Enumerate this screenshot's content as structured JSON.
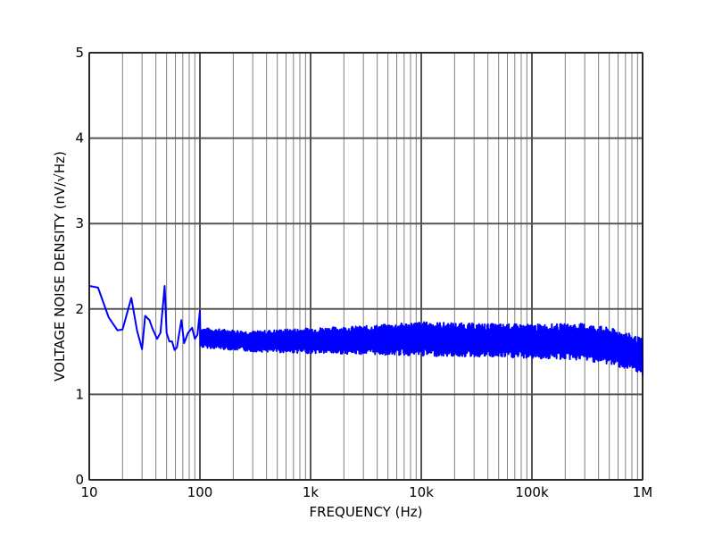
{
  "chart_data": {
    "type": "line",
    "title": "",
    "xlabel": "FREQUENCY (Hz)",
    "ylabel": "VOLTAGE NOISE DENSITY (nV/√Hz)",
    "xscale": "log",
    "xlim": [
      10,
      1000000
    ],
    "ylim": [
      0,
      5
    ],
    "grid": true,
    "line_color": "#0000ff",
    "x_ticks": [
      {
        "value": 10,
        "label": "10"
      },
      {
        "value": 100,
        "label": "100"
      },
      {
        "value": 1000,
        "label": "1k"
      },
      {
        "value": 10000,
        "label": "10k"
      },
      {
        "value": 100000,
        "label": "100k"
      },
      {
        "value": 1000000,
        "label": "1M"
      }
    ],
    "y_ticks": [
      {
        "value": 0,
        "label": "0"
      },
      {
        "value": 1,
        "label": "1"
      },
      {
        "value": 2,
        "label": "2"
      },
      {
        "value": 3,
        "label": "3"
      },
      {
        "value": 4,
        "label": "4"
      },
      {
        "value": 5,
        "label": "5"
      }
    ],
    "series": [
      {
        "x": [
          10,
          12,
          15,
          18,
          20,
          24,
          27,
          30,
          32,
          35,
          37,
          41,
          44,
          48,
          50,
          53,
          56,
          59,
          62,
          68,
          72,
          78,
          85,
          90,
          95,
          100
        ],
        "y": [
          2.27,
          2.25,
          1.9,
          1.75,
          1.76,
          2.13,
          1.75,
          1.53,
          1.92,
          1.87,
          1.78,
          1.65,
          1.72,
          2.27,
          1.72,
          1.62,
          1.62,
          1.52,
          1.55,
          1.87,
          1.6,
          1.72,
          1.78,
          1.65,
          1.7,
          1.98
        ]
      }
    ],
    "noise_band": {
      "x": [
        100,
        300,
        1000,
        3000,
        10000,
        30000,
        100000,
        300000,
        500000,
        700000,
        1000000
      ],
      "lower": [
        1.55,
        1.5,
        1.48,
        1.47,
        1.45,
        1.44,
        1.42,
        1.4,
        1.35,
        1.3,
        1.22
      ],
      "upper": [
        1.78,
        1.74,
        1.78,
        1.8,
        1.85,
        1.83,
        1.82,
        1.83,
        1.78,
        1.73,
        1.65
      ]
    }
  }
}
